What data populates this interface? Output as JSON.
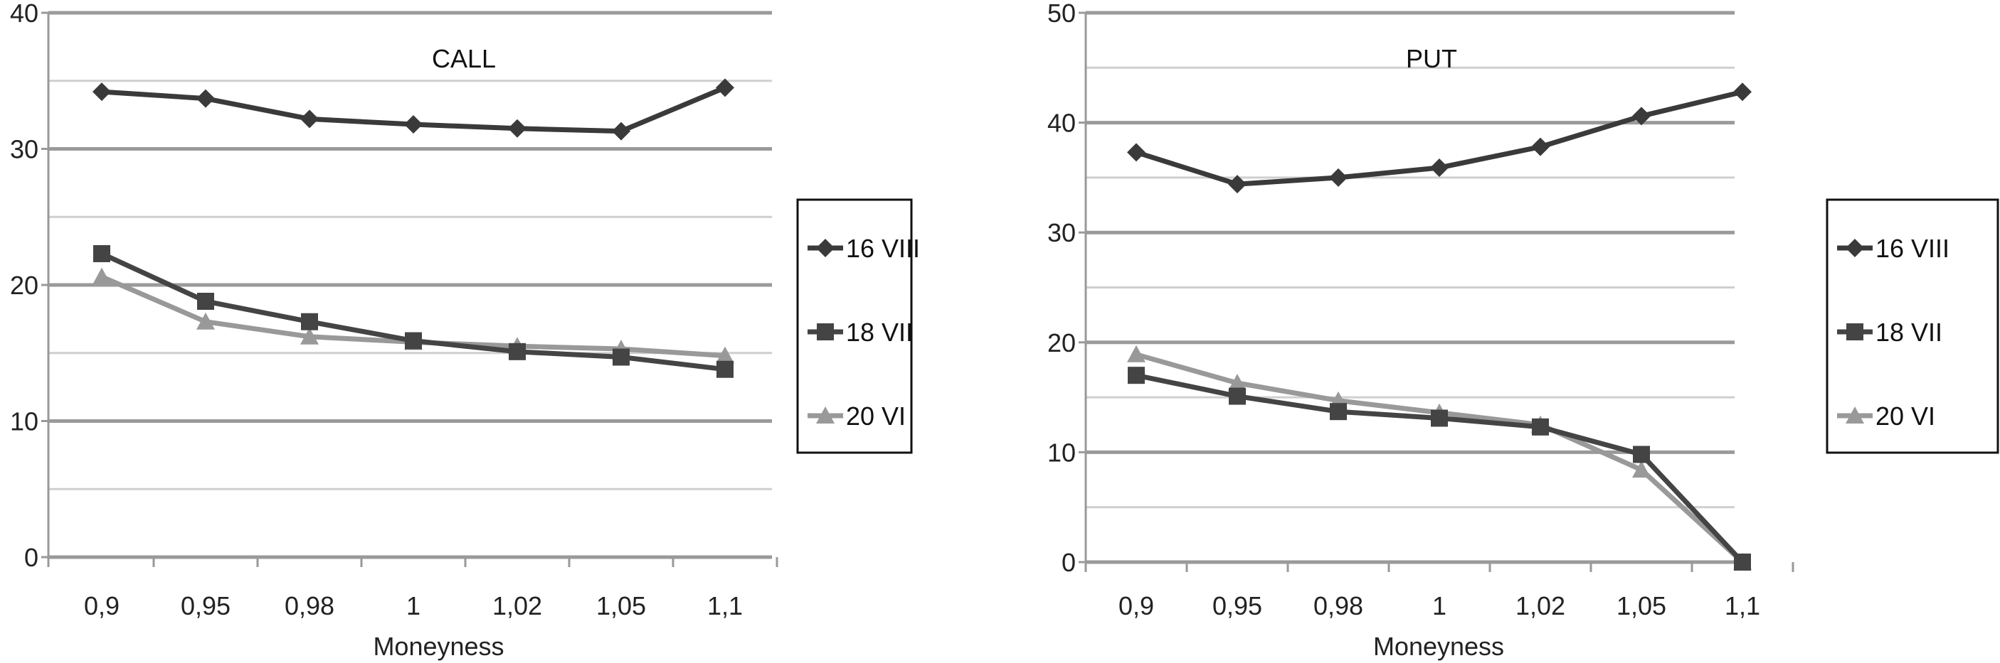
{
  "chart_data": [
    {
      "type": "line",
      "title": "CALL",
      "xlabel": "Moneyness",
      "ylabel": "",
      "categories": [
        "0,9",
        "0,95",
        "0,98",
        "1",
        "1,02",
        "1,05",
        "1,1"
      ],
      "ylim": [
        0,
        40
      ],
      "yticks": [
        0,
        10,
        20,
        30,
        40
      ],
      "grid": true,
      "legend": "right",
      "series": [
        {
          "name": "16 VIII",
          "marker": "diamond",
          "color": "#3a3a3a",
          "values": [
            34.2,
            33.7,
            32.2,
            31.8,
            31.5,
            31.3,
            34.5
          ]
        },
        {
          "name": "18 VII",
          "marker": "square",
          "color": "#444444",
          "values": [
            22.3,
            18.8,
            17.3,
            15.9,
            15.1,
            14.7,
            13.8
          ]
        },
        {
          "name": "20 VI",
          "marker": "triangle",
          "color": "#999999",
          "values": [
            20.6,
            17.3,
            16.2,
            15.8,
            15.5,
            15.3,
            14.8
          ]
        }
      ]
    },
    {
      "type": "line",
      "title": "PUT",
      "xlabel": "Moneyness",
      "ylabel": "",
      "categories": [
        "0,9",
        "0,95",
        "0,98",
        "1",
        "1,02",
        "1,05",
        "1,1"
      ],
      "ylim": [
        0,
        50
      ],
      "yticks": [
        0,
        10,
        20,
        30,
        40,
        50
      ],
      "grid": true,
      "legend": "right",
      "series": [
        {
          "name": "16 VIII",
          "marker": "diamond",
          "color": "#3a3a3a",
          "values": [
            37.3,
            34.4,
            35.0,
            35.9,
            37.8,
            40.6,
            42.8
          ]
        },
        {
          "name": "18 VII",
          "marker": "square",
          "color": "#444444",
          "values": [
            17.0,
            15.1,
            13.7,
            13.1,
            12.3,
            9.8,
            0
          ]
        },
        {
          "name": "20 VI",
          "marker": "triangle",
          "color": "#999999",
          "values": [
            18.9,
            16.3,
            14.7,
            13.6,
            12.5,
            8.4,
            0
          ]
        }
      ]
    }
  ]
}
